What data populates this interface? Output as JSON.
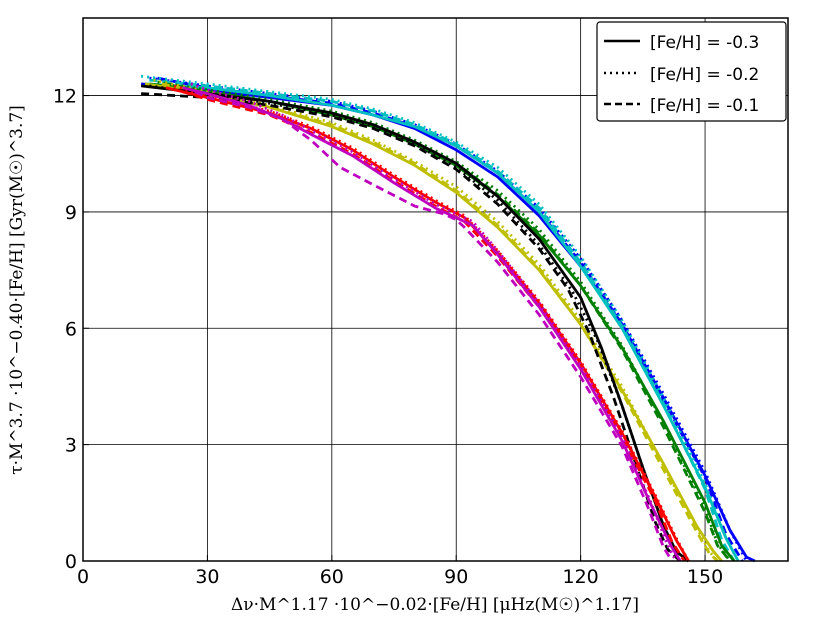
{
  "chart_data": {
    "type": "line",
    "xlabel": "Δν·M^1.17 ·10^−0.02·[Fe/H] [μHz(M☉)^1.17]",
    "ylabel": "τ·M^3.7 ·10^−0.40·[Fe/H] [Gyr(M☉)^3.7]",
    "xlim": [
      0,
      170
    ],
    "ylim": [
      0,
      14
    ],
    "xticks": [
      0,
      30,
      60,
      90,
      120,
      150
    ],
    "yticks": [
      0,
      3,
      6,
      9,
      12
    ],
    "grid": true,
    "legend_position": "top-right",
    "legend": [
      {
        "label": "[Fe/H] = -0.3",
        "dash": "solid"
      },
      {
        "label": "[Fe/H] = -0.2",
        "dash": "dotted"
      },
      {
        "label": "[Fe/H] = -0.1",
        "dash": "dashed"
      }
    ],
    "series": [
      {
        "color": "#0000ff",
        "dash": "solid",
        "x": [
          14,
          30,
          45,
          60,
          70,
          80,
          90,
          100,
          110,
          120,
          130,
          140,
          150,
          156,
          160,
          162
        ],
        "y": [
          12.3,
          12.15,
          11.95,
          11.75,
          11.5,
          11.15,
          10.6,
          9.9,
          8.9,
          7.6,
          6.1,
          4.2,
          2.2,
          0.8,
          0.1,
          0
        ]
      },
      {
        "color": "#0000ff",
        "dash": "dotted",
        "x": [
          16,
          30,
          45,
          60,
          70,
          80,
          90,
          100,
          110,
          120,
          130,
          140,
          150,
          156,
          160
        ],
        "y": [
          12.45,
          12.25,
          12.05,
          11.85,
          11.6,
          11.25,
          10.75,
          10.05,
          9.1,
          7.8,
          6.2,
          4.3,
          2.3,
          0.8,
          0
        ]
      },
      {
        "color": "#0000ff",
        "dash": "dashed",
        "x": [
          18,
          30,
          45,
          60,
          70,
          80,
          90,
          100,
          110,
          120,
          130,
          140,
          150,
          155,
          159
        ],
        "y": [
          12.45,
          12.2,
          12.0,
          11.8,
          11.55,
          11.2,
          10.7,
          10.0,
          9.0,
          7.7,
          6.1,
          4.15,
          2.15,
          0.7,
          0
        ]
      },
      {
        "color": "#00bfbf",
        "dash": "solid",
        "x": [
          15,
          30,
          45,
          60,
          70,
          80,
          90,
          100,
          110,
          120,
          130,
          140,
          150,
          155,
          158
        ],
        "y": [
          12.3,
          12.2,
          12.0,
          11.75,
          11.5,
          11.2,
          10.7,
          10.0,
          9.0,
          7.6,
          6.0,
          4.0,
          1.9,
          0.6,
          0
        ]
      },
      {
        "color": "#00bfbf",
        "dash": "dotted",
        "x": [
          14,
          30,
          45,
          60,
          70,
          80,
          90,
          100,
          110,
          120,
          130,
          140,
          150,
          155,
          158
        ],
        "y": [
          12.5,
          12.3,
          12.1,
          11.9,
          11.65,
          11.3,
          10.8,
          10.15,
          9.2,
          7.85,
          6.2,
          4.2,
          2.0,
          0.6,
          0
        ]
      },
      {
        "color": "#00bfbf",
        "dash": "dashed",
        "x": [
          16,
          30,
          45,
          60,
          70,
          80,
          90,
          100,
          110,
          120,
          130,
          140,
          150,
          154,
          157
        ],
        "y": [
          12.4,
          12.25,
          12.05,
          11.85,
          11.6,
          11.25,
          10.75,
          10.05,
          9.1,
          7.7,
          6.05,
          4.05,
          1.85,
          0.55,
          0
        ]
      },
      {
        "color": "#007f00",
        "dash": "solid",
        "x": [
          16,
          30,
          45,
          60,
          70,
          80,
          90,
          100,
          110,
          120,
          130,
          140,
          150,
          154,
          157
        ],
        "y": [
          12.3,
          12.1,
          11.85,
          11.5,
          11.2,
          10.75,
          10.2,
          9.4,
          8.4,
          7.1,
          5.5,
          3.6,
          1.5,
          0.4,
          0
        ]
      },
      {
        "color": "#007f00",
        "dash": "dotted",
        "x": [
          18,
          30,
          45,
          60,
          70,
          80,
          90,
          100,
          110,
          120,
          130,
          140,
          150,
          153,
          156
        ],
        "y": [
          12.35,
          12.15,
          11.9,
          11.6,
          11.3,
          10.85,
          10.3,
          9.55,
          8.55,
          7.2,
          5.55,
          3.55,
          1.35,
          0.45,
          0
        ]
      },
      {
        "color": "#007f00",
        "dash": "dashed",
        "x": [
          20,
          30,
          45,
          60,
          70,
          80,
          90,
          100,
          110,
          120,
          130,
          140,
          150,
          153,
          156
        ],
        "y": [
          12.3,
          12.1,
          11.85,
          11.55,
          11.25,
          10.8,
          10.25,
          9.45,
          8.45,
          7.1,
          5.45,
          3.45,
          1.25,
          0.4,
          0
        ]
      },
      {
        "color": "#bfbf00",
        "dash": "solid",
        "x": [
          15,
          30,
          45,
          60,
          70,
          80,
          90,
          100,
          110,
          120,
          130,
          140,
          148,
          152,
          154
        ],
        "y": [
          12.3,
          12.05,
          11.7,
          11.2,
          10.75,
          10.2,
          9.5,
          8.6,
          7.5,
          6.1,
          4.4,
          2.5,
          0.9,
          0.25,
          0
        ]
      },
      {
        "color": "#bfbf00",
        "dash": "dotted",
        "x": [
          17,
          30,
          45,
          60,
          70,
          80,
          90,
          100,
          110,
          120,
          130,
          140,
          148,
          151,
          153
        ],
        "y": [
          12.4,
          12.1,
          11.75,
          11.3,
          10.85,
          10.3,
          9.65,
          8.75,
          7.65,
          6.2,
          4.5,
          2.45,
          0.85,
          0.25,
          0
        ]
      },
      {
        "color": "#bfbf00",
        "dash": "dashed",
        "x": [
          19,
          30,
          45,
          60,
          70,
          80,
          90,
          100,
          110,
          120,
          130,
          140,
          148,
          151,
          153
        ],
        "y": [
          12.3,
          12.05,
          11.7,
          11.25,
          10.8,
          10.25,
          9.55,
          8.65,
          7.55,
          6.1,
          4.35,
          2.35,
          0.75,
          0.2,
          0
        ]
      },
      {
        "color": "#000000",
        "dash": "solid",
        "x": [
          14,
          30,
          45,
          60,
          70,
          80,
          90,
          100,
          110,
          120,
          125,
          130,
          135,
          140,
          143,
          146
        ],
        "y": [
          12.25,
          12.05,
          11.85,
          11.55,
          11.25,
          10.8,
          10.25,
          9.4,
          8.3,
          6.8,
          5.5,
          4.0,
          2.4,
          0.9,
          0.25,
          0
        ]
      },
      {
        "color": "#000000",
        "dash": "dotted",
        "x": [
          16,
          30,
          45,
          60,
          70,
          80,
          90,
          100,
          110,
          118,
          124,
          130,
          135,
          140,
          143,
          146
        ],
        "y": [
          12.25,
          12.05,
          11.8,
          11.5,
          11.2,
          10.75,
          10.15,
          9.3,
          8.15,
          6.95,
          5.7,
          4.0,
          2.4,
          0.9,
          0.25,
          0
        ]
      },
      {
        "color": "#000000",
        "dash": "dashed",
        "x": [
          14,
          30,
          45,
          60,
          70,
          80,
          90,
          100,
          110,
          117,
          122,
          128,
          133,
          138,
          141,
          144
        ],
        "y": [
          12.05,
          11.95,
          11.75,
          11.45,
          11.15,
          10.7,
          10.1,
          9.2,
          8.05,
          7.0,
          5.9,
          4.2,
          2.6,
          1.0,
          0.3,
          0
        ]
      },
      {
        "color": "#ff0000",
        "dash": "solid",
        "x": [
          20,
          30,
          45,
          55,
          65,
          75,
          85,
          92,
          100,
          110,
          120,
          130,
          138,
          143,
          146
        ],
        "y": [
          12.2,
          11.95,
          11.55,
          11.15,
          10.6,
          9.9,
          9.25,
          8.85,
          7.95,
          6.65,
          5.1,
          3.3,
          1.65,
          0.55,
          0
        ]
      },
      {
        "color": "#ff0000",
        "dash": "dotted",
        "x": [
          22,
          30,
          45,
          55,
          65,
          75,
          85,
          92,
          100,
          110,
          120,
          130,
          138,
          143,
          146
        ],
        "y": [
          12.25,
          12.0,
          11.6,
          11.2,
          10.65,
          9.95,
          9.3,
          8.9,
          8.0,
          6.7,
          5.15,
          3.35,
          1.7,
          0.6,
          0
        ]
      },
      {
        "color": "#ff0000",
        "dash": "dashed",
        "x": [
          24,
          30,
          45,
          55,
          65,
          75,
          85,
          92,
          100,
          110,
          120,
          130,
          138,
          142,
          145
        ],
        "y": [
          12.1,
          11.9,
          11.5,
          11.05,
          10.5,
          9.8,
          9.15,
          8.75,
          7.85,
          6.55,
          5.0,
          3.2,
          1.55,
          0.5,
          0
        ]
      },
      {
        "color": "#bf00bf",
        "dash": "solid",
        "x": [
          24,
          30,
          40,
          48,
          55,
          65,
          75,
          85,
          90,
          94,
          100,
          110,
          120,
          130,
          137,
          142,
          144
        ],
        "y": [
          12.2,
          12.05,
          11.75,
          11.4,
          11.0,
          10.45,
          9.75,
          9.1,
          8.85,
          8.65,
          7.9,
          6.55,
          4.95,
          3.1,
          1.45,
          0.35,
          0
        ]
      },
      {
        "color": "#bf00bf",
        "dash": "dotted",
        "x": [
          26,
          30,
          40,
          48,
          55,
          65,
          75,
          85,
          90,
          94,
          100,
          110,
          120,
          130,
          137,
          141,
          143
        ],
        "y": [
          12.3,
          12.15,
          11.85,
          11.5,
          11.1,
          10.55,
          9.85,
          9.2,
          8.95,
          8.75,
          8.0,
          6.65,
          5.05,
          3.2,
          1.5,
          0.4,
          0
        ]
      },
      {
        "color": "#bf00bf",
        "dash": "dashed",
        "x": [
          27,
          30,
          40,
          48,
          55,
          62,
          70,
          80,
          87,
          90,
          92,
          100,
          110,
          120,
          130,
          136,
          140,
          142
        ],
        "y": [
          12.1,
          11.95,
          11.7,
          11.4,
          10.85,
          10.15,
          9.7,
          9.15,
          8.95,
          8.8,
          8.6,
          7.7,
          6.35,
          4.75,
          2.95,
          1.45,
          0.35,
          0
        ]
      }
    ]
  }
}
